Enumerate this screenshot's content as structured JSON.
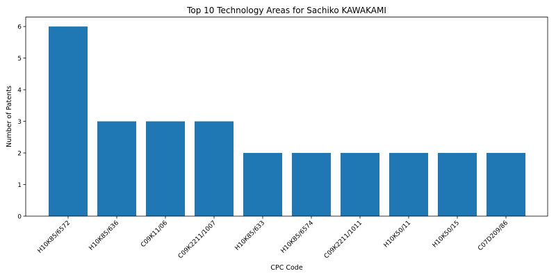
{
  "chart_data": {
    "type": "bar",
    "title": "Top 10 Technology Areas for Sachiko KAWAKAMI",
    "xlabel": "CPC Code",
    "ylabel": "Number of Patents",
    "categories": [
      "H10K85/6572",
      "H10K85/636",
      "C09K11/06",
      "C09K2211/1007",
      "H10K85/633",
      "H10K85/6574",
      "C09K2211/1011",
      "H10K50/11",
      "H10K50/15",
      "C07D209/86"
    ],
    "values": [
      6,
      3,
      3,
      3,
      2,
      2,
      2,
      2,
      2,
      2
    ],
    "ylim": [
      0,
      6.3
    ],
    "yticks": [
      "0",
      "1",
      "2",
      "3",
      "4",
      "5",
      "6"
    ],
    "bar_color": "#1f77b4",
    "grid": false,
    "legend": "none"
  }
}
